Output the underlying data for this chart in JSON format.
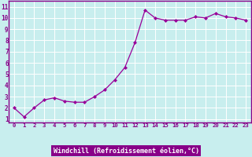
{
  "x": [
    0,
    1,
    2,
    3,
    4,
    5,
    6,
    7,
    8,
    9,
    10,
    11,
    12,
    13,
    14,
    15,
    16,
    17,
    18,
    19,
    20,
    21,
    22,
    23
  ],
  "y": [
    2.0,
    1.2,
    2.0,
    2.7,
    2.9,
    2.6,
    2.5,
    2.5,
    3.0,
    3.6,
    4.5,
    5.6,
    7.8,
    10.7,
    10.0,
    9.8,
    9.8,
    9.8,
    10.1,
    10.0,
    10.4,
    10.1,
    10.0,
    9.8
  ],
  "line_color": "#990099",
  "marker_color": "#990099",
  "bg_color": "#c8eeee",
  "grid_color": "#ffffff",
  "xlabel": "Windchill (Refroidissement éolien,°C)",
  "ylabel_ticks": [
    1,
    2,
    3,
    4,
    5,
    6,
    7,
    8,
    9,
    10,
    11
  ],
  "xlim": [
    -0.5,
    23.5
  ],
  "ylim": [
    0.7,
    11.5
  ],
  "xlabel_bg": "#880088",
  "xlabel_text_color": "#ffffff",
  "border_color": "#880088",
  "tick_color": "#880088"
}
